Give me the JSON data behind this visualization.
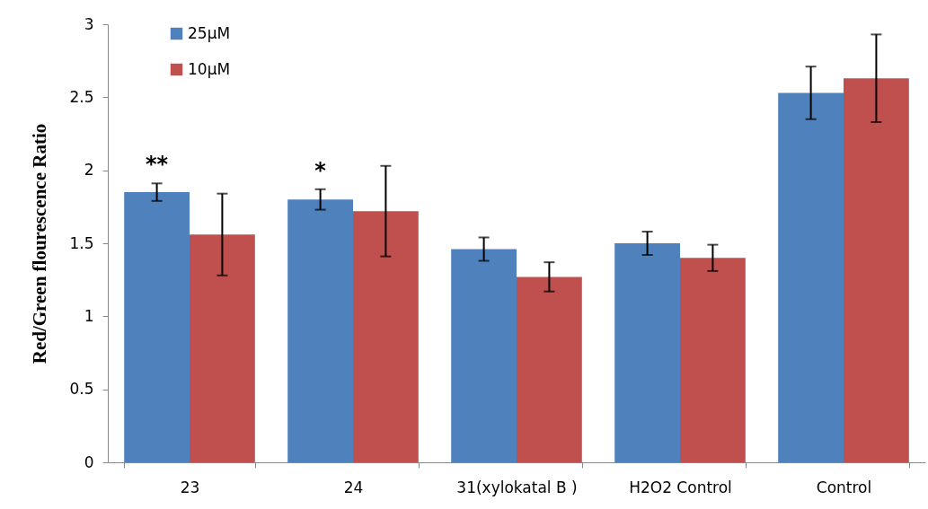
{
  "chart_data": {
    "type": "bar",
    "ylabel": "Red/Green flourescence Ratio",
    "categories": [
      "23",
      "24",
      "31(xylokatal B )",
      "H2O2 Control",
      "Control"
    ],
    "series": [
      {
        "name": "25µM",
        "color": "#4f81bd",
        "values": [
          1.85,
          1.8,
          1.46,
          1.5,
          2.53
        ],
        "errors": [
          0.06,
          0.07,
          0.08,
          0.08,
          0.18
        ]
      },
      {
        "name": "10µM",
        "color": "#c0504d",
        "values": [
          1.56,
          1.72,
          1.27,
          1.4,
          2.63
        ],
        "errors": [
          0.28,
          0.31,
          0.1,
          0.09,
          0.3
        ]
      }
    ],
    "ylim": [
      0,
      3
    ],
    "yticks": [
      0,
      0.5,
      1,
      1.5,
      2,
      2.5,
      3
    ],
    "grid": false,
    "legend": "top left",
    "annotations": [
      "**",
      "*"
    ]
  }
}
